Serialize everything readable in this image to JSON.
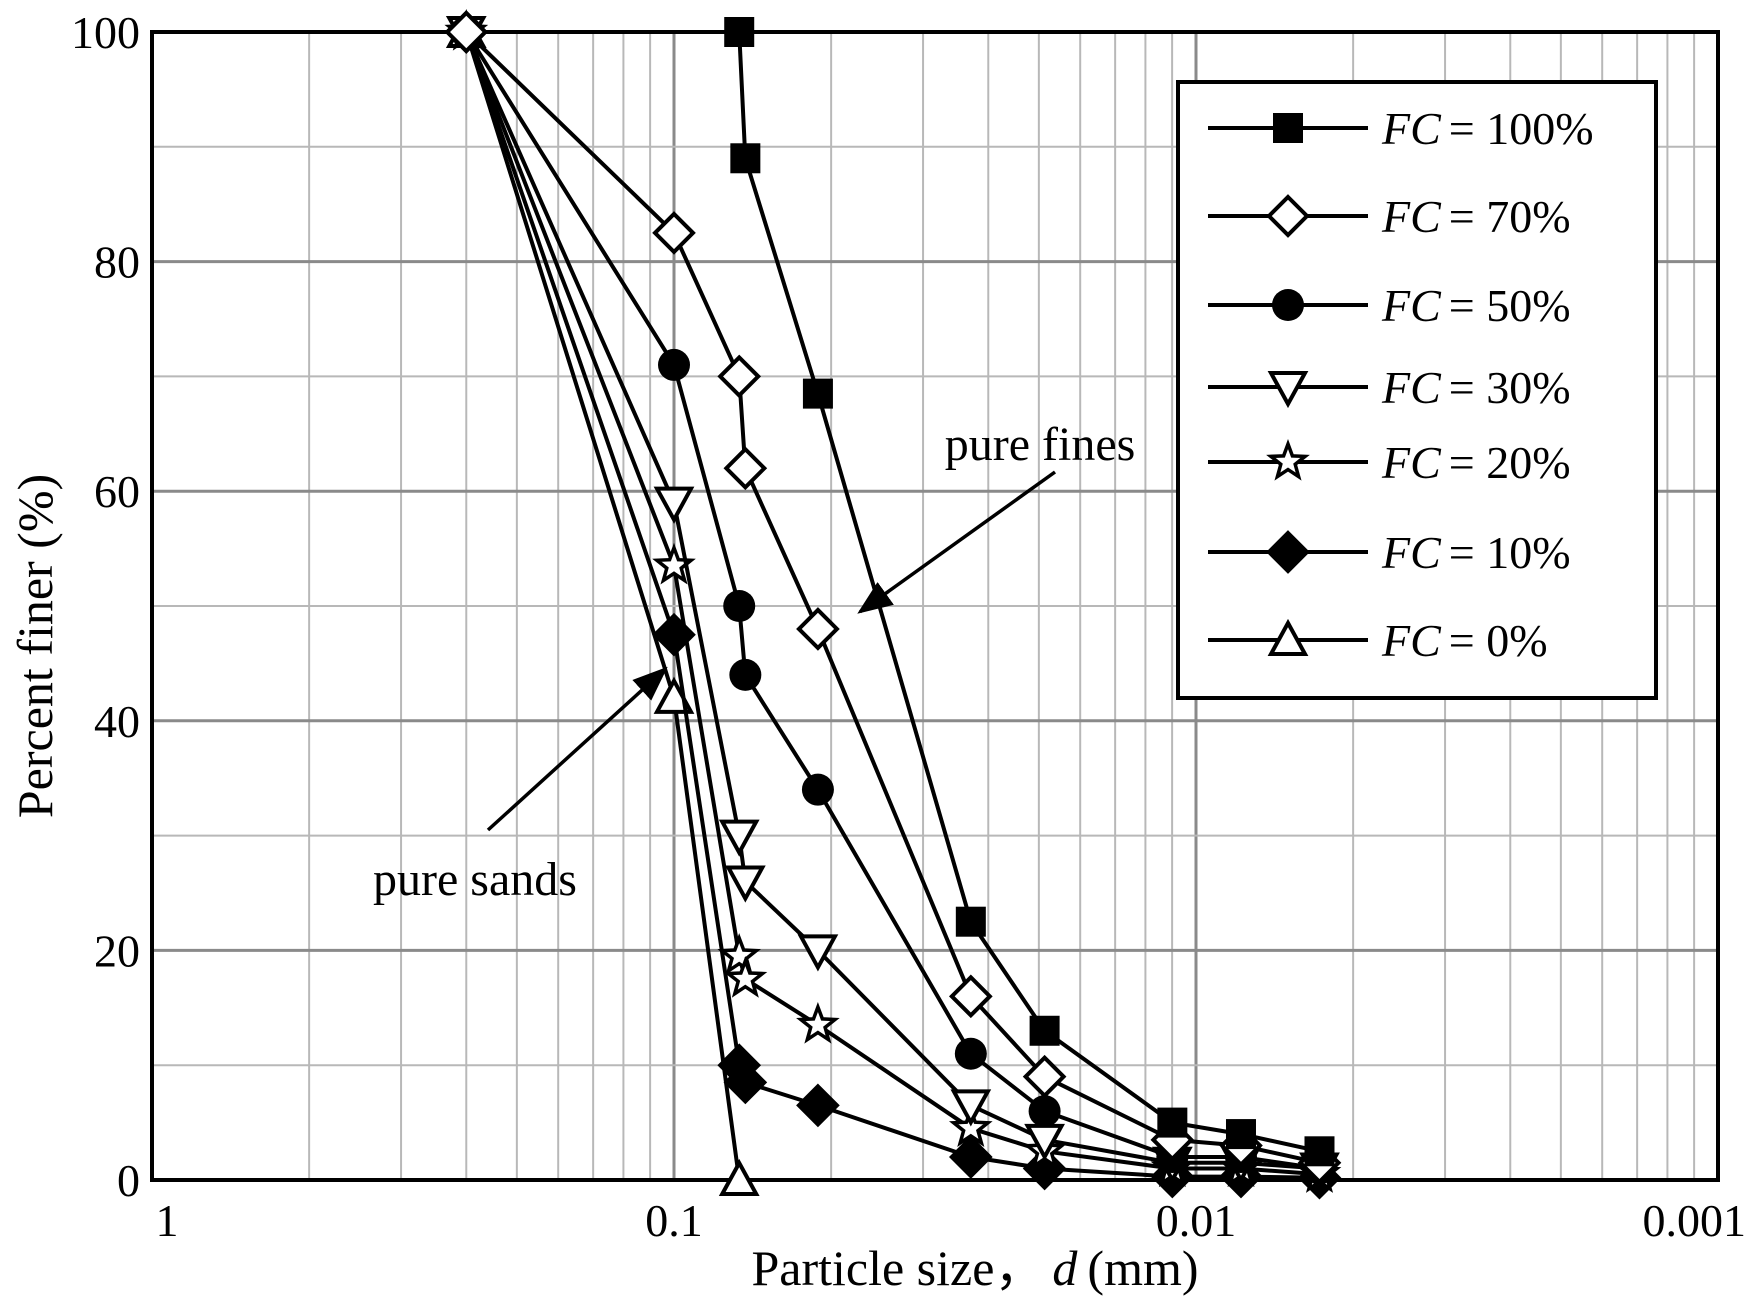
{
  "chart_data": {
    "type": "line",
    "xlabel": "Particle size，",
    "xlabel_var": "d",
    "xlabel_unit": "(mm)",
    "ylabel": "Percent finer (%)",
    "x_scale": "log",
    "x_reversed": true,
    "xlim": [
      1,
      0.001
    ],
    "ylim": [
      0,
      100
    ],
    "grid": true,
    "legend_position": "top-right",
    "x_ticks": [
      {
        "value": 1,
        "label": "1"
      },
      {
        "value": 0.1,
        "label": "0.1"
      },
      {
        "value": 0.01,
        "label": "0.01"
      },
      {
        "value": 0.001,
        "label": "0.001"
      }
    ],
    "y_ticks": [
      {
        "value": 0,
        "label": "0"
      },
      {
        "value": 20,
        "label": "20"
      },
      {
        "value": 40,
        "label": "40"
      },
      {
        "value": 60,
        "label": "60"
      },
      {
        "value": 80,
        "label": "80"
      },
      {
        "value": 100,
        "label": "100"
      }
    ],
    "series": [
      {
        "name": "FC = 100%",
        "legend_var": "FC",
        "legend_val": "= 100%",
        "marker": "square-filled",
        "x": [
          0.075,
          0.073,
          0.053,
          0.027,
          0.0195,
          0.0111,
          0.0082,
          0.0058
        ],
        "y": [
          100,
          89,
          68.5,
          22.5,
          13,
          5,
          4,
          2.5
        ]
      },
      {
        "name": "FC = 70%",
        "legend_var": "FC",
        "legend_val": "= 70%",
        "marker": "diamond-open",
        "x": [
          0.25,
          0.1,
          0.075,
          0.073,
          0.053,
          0.027,
          0.0195,
          0.0111,
          0.0082,
          0.0058
        ],
        "y": [
          100,
          82.5,
          70,
          62,
          48,
          16,
          9,
          3.5,
          3,
          1.5
        ]
      },
      {
        "name": "FC = 50%",
        "legend_var": "FC",
        "legend_val": "= 50%",
        "marker": "circle-filled",
        "x": [
          0.25,
          0.1,
          0.075,
          0.073,
          0.053,
          0.027,
          0.0195,
          0.0111,
          0.0082,
          0.0058
        ],
        "y": [
          100,
          71,
          50,
          44,
          34,
          11,
          6,
          2,
          2,
          1
        ]
      },
      {
        "name": "FC = 30%",
        "legend_var": "FC",
        "legend_val": "= 30%",
        "marker": "triangle-down-open",
        "x": [
          0.25,
          0.1,
          0.075,
          0.073,
          0.053,
          0.027,
          0.0195,
          0.0111,
          0.0082,
          0.0058
        ],
        "y": [
          100,
          59,
          30,
          26,
          20,
          6.5,
          3.5,
          1.5,
          1.5,
          1
        ]
      },
      {
        "name": "FC = 20%",
        "legend_var": "FC",
        "legend_val": "= 20%",
        "marker": "star-open",
        "x": [
          0.25,
          0.1,
          0.075,
          0.073,
          0.053,
          0.027,
          0.0195,
          0.0111,
          0.0082,
          0.0058
        ],
        "y": [
          100,
          53.5,
          19.5,
          17.5,
          13.5,
          4.5,
          2.5,
          1,
          1,
          0.5
        ]
      },
      {
        "name": "FC = 10%",
        "legend_var": "FC",
        "legend_val": "= 10%",
        "marker": "diamond-filled",
        "x": [
          0.25,
          0.1,
          0.075,
          0.073,
          0.053,
          0.027,
          0.0195,
          0.0111,
          0.0082,
          0.0058
        ],
        "y": [
          100,
          47.5,
          10,
          8.5,
          6.5,
          2,
          1,
          0.3,
          0.3,
          0.2
        ]
      },
      {
        "name": "FC = 0%",
        "legend_var": "FC",
        "legend_val": "= 0%",
        "marker": "triangle-up-open",
        "x": [
          0.25,
          0.1,
          0.075
        ],
        "y": [
          100,
          42,
          0
        ]
      }
    ],
    "annotations": [
      {
        "text": "pure fines",
        "arrow_to": {
          "x": 0.044,
          "y": 49.5
        }
      },
      {
        "text": "pure sands",
        "arrow_to": {
          "x": 0.104,
          "y": 44.5
        }
      }
    ]
  }
}
